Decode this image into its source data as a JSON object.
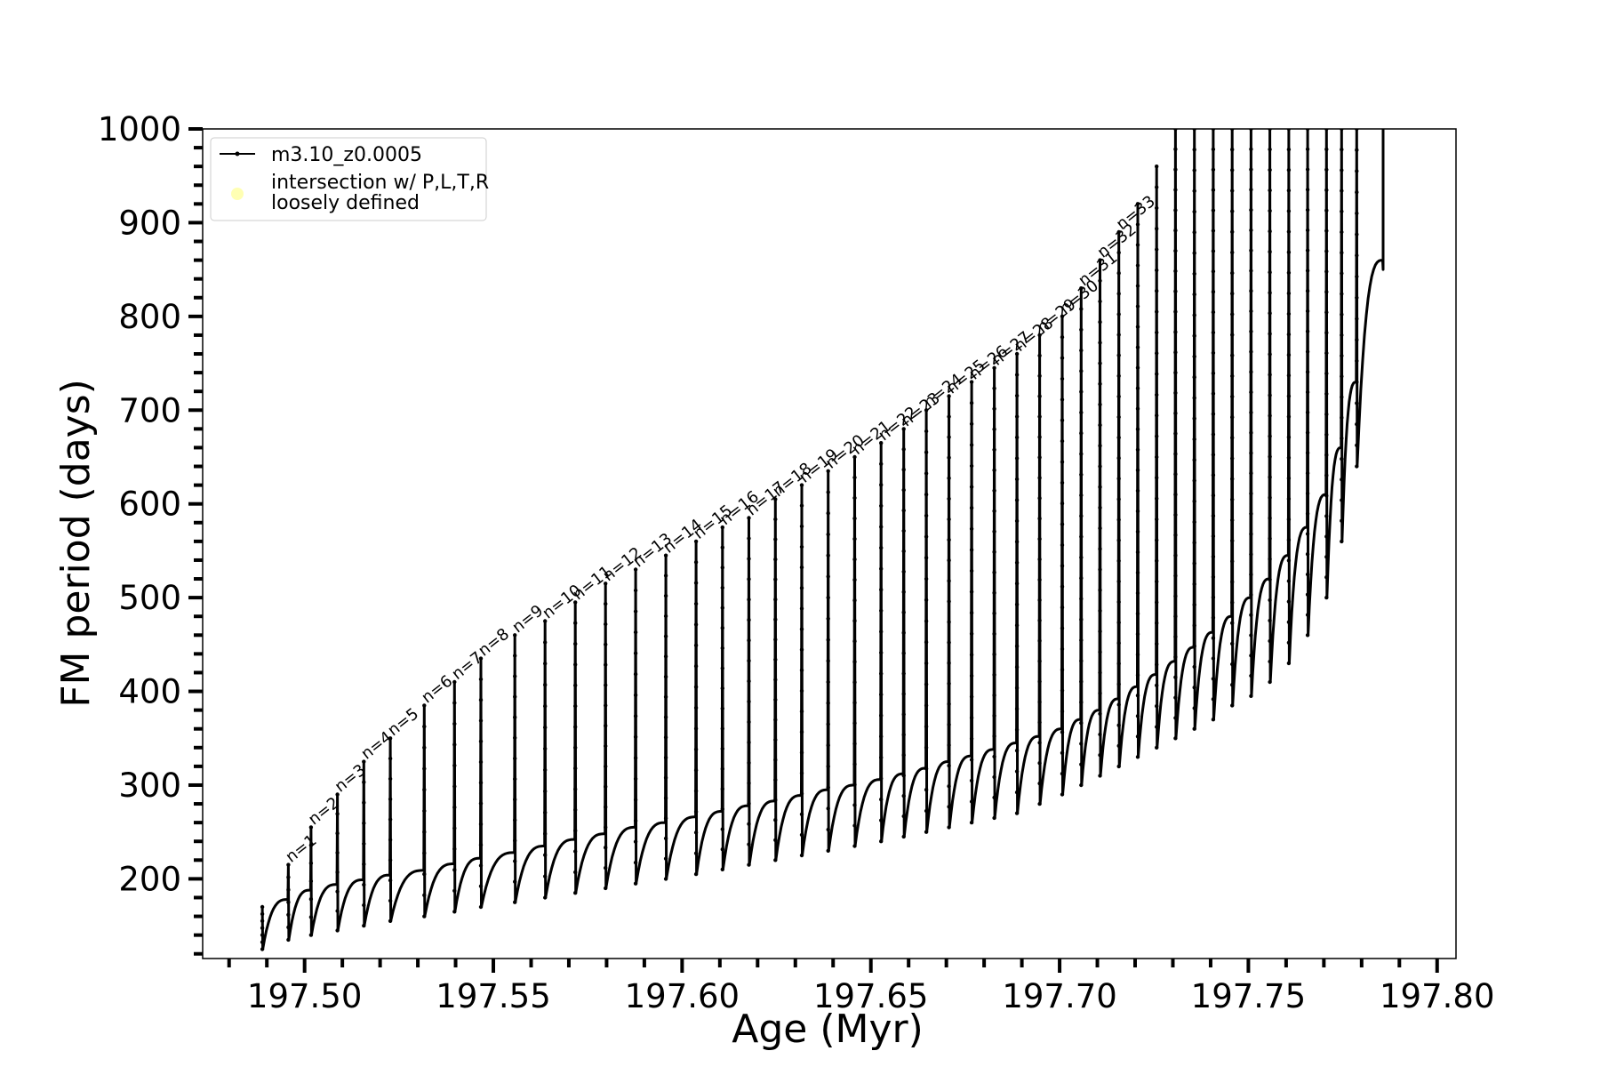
{
  "chart_data": {
    "type": "line",
    "title": "",
    "xlabel": "Age (Myr)",
    "ylabel": "FM period (days)",
    "xlim": [
      197.473,
      197.805
    ],
    "ylim": [
      115,
      1000
    ],
    "xticks": [
      197.5,
      197.55,
      197.6,
      197.65,
      197.7,
      197.75,
      197.8
    ],
    "xtick_labels": [
      "197.50",
      "197.55",
      "197.60",
      "197.65",
      "197.70",
      "197.75",
      "197.80"
    ],
    "x_minor_step": 0.01,
    "yticks": [
      200,
      300,
      400,
      500,
      600,
      700,
      800,
      900,
      1000
    ],
    "ytick_labels": [
      "200",
      "300",
      "400",
      "500",
      "600",
      "700",
      "800",
      "900",
      "1000"
    ],
    "y_minor_step": 20,
    "grid": false,
    "legend_position": "upper-left",
    "series": [
      {
        "name": "m3.10_z0.0005",
        "color": "#000000",
        "marker": "dot"
      }
    ],
    "intersection_legend": {
      "label_lines": [
        "intersection w/ P,L,T,R",
        "loosely defined"
      ],
      "color": "#ffffb3"
    },
    "pulses": [
      {
        "label": "",
        "x": 197.4888,
        "peak": 170,
        "min": 125,
        "end": 178
      },
      {
        "label": "n=1",
        "x": 197.4957,
        "peak": 215,
        "min": 135,
        "end": 188
      },
      {
        "label": "n=2",
        "x": 197.5017,
        "peak": 255,
        "min": 140,
        "end": 194
      },
      {
        "label": "n=3",
        "x": 197.5087,
        "peak": 290,
        "min": 145,
        "end": 199
      },
      {
        "label": "n=4",
        "x": 197.5157,
        "peak": 325,
        "min": 150,
        "end": 204
      },
      {
        "label": "n=5",
        "x": 197.5227,
        "peak": 350,
        "min": 155,
        "end": 209
      },
      {
        "label": "n=6",
        "x": 197.5317,
        "peak": 385,
        "min": 160,
        "end": 216
      },
      {
        "label": "n=7",
        "x": 197.5397,
        "peak": 410,
        "min": 165,
        "end": 222
      },
      {
        "label": "n=8",
        "x": 197.5467,
        "peak": 435,
        "min": 170,
        "end": 228
      },
      {
        "label": "n=9",
        "x": 197.5557,
        "peak": 460,
        "min": 175,
        "end": 235
      },
      {
        "label": "n=10",
        "x": 197.5637,
        "peak": 475,
        "min": 180,
        "end": 242
      },
      {
        "label": "n=11",
        "x": 197.5717,
        "peak": 495,
        "min": 185,
        "end": 248
      },
      {
        "label": "n=12",
        "x": 197.5797,
        "peak": 515,
        "min": 190,
        "end": 255
      },
      {
        "label": "n=13",
        "x": 197.5877,
        "peak": 530,
        "min": 195,
        "end": 260
      },
      {
        "label": "n=14",
        "x": 197.5957,
        "peak": 545,
        "min": 200,
        "end": 266
      },
      {
        "label": "n=15",
        "x": 197.6037,
        "peak": 560,
        "min": 205,
        "end": 272
      },
      {
        "label": "n=16",
        "x": 197.6107,
        "peak": 575,
        "min": 210,
        "end": 278
      },
      {
        "label": "n=17",
        "x": 197.6177,
        "peak": 585,
        "min": 215,
        "end": 283
      },
      {
        "label": "n=18",
        "x": 197.6247,
        "peak": 605,
        "min": 220,
        "end": 289
      },
      {
        "label": "n=19",
        "x": 197.6317,
        "peak": 620,
        "min": 225,
        "end": 295
      },
      {
        "label": "n=20",
        "x": 197.6387,
        "peak": 635,
        "min": 230,
        "end": 300
      },
      {
        "label": "n=21",
        "x": 197.6457,
        "peak": 650,
        "min": 235,
        "end": 306
      },
      {
        "label": "n=22",
        "x": 197.6527,
        "peak": 665,
        "min": 240,
        "end": 312
      },
      {
        "label": "n=23",
        "x": 197.6587,
        "peak": 680,
        "min": 245,
        "end": 318
      },
      {
        "label": "n=24",
        "x": 197.6647,
        "peak": 700,
        "min": 250,
        "end": 325
      },
      {
        "label": "n=25",
        "x": 197.6707,
        "peak": 715,
        "min": 255,
        "end": 331
      },
      {
        "label": "n=26",
        "x": 197.6767,
        "peak": 730,
        "min": 260,
        "end": 338
      },
      {
        "label": "n=27",
        "x": 197.6827,
        "peak": 745,
        "min": 265,
        "end": 345
      },
      {
        "label": "n=28",
        "x": 197.6887,
        "peak": 760,
        "min": 270,
        "end": 352
      },
      {
        "label": "n=29",
        "x": 197.6947,
        "peak": 780,
        "min": 280,
        "end": 360
      },
      {
        "label": "n=30",
        "x": 197.7007,
        "peak": 800,
        "min": 290,
        "end": 370
      },
      {
        "label": "n=31",
        "x": 197.7057,
        "peak": 830,
        "min": 300,
        "end": 380
      },
      {
        "label": "n=32",
        "x": 197.7107,
        "peak": 860,
        "min": 310,
        "end": 392
      },
      {
        "label": "n=33",
        "x": 197.7157,
        "peak": 890,
        "min": 320,
        "end": 405
      },
      {
        "label": "",
        "x": 197.7207,
        "peak": 920,
        "min": 330,
        "end": 418
      },
      {
        "label": "",
        "x": 197.7257,
        "peak": 960,
        "min": 340,
        "end": 432
      },
      {
        "label": "",
        "x": 197.7307,
        "peak": 1000,
        "min": 350,
        "end": 447
      },
      {
        "label": "",
        "x": 197.7357,
        "peak": 1000,
        "min": 360,
        "end": 463
      },
      {
        "label": "",
        "x": 197.7407,
        "peak": 1000,
        "min": 370,
        "end": 480
      },
      {
        "label": "",
        "x": 197.7457,
        "peak": 1000,
        "min": 385,
        "end": 500
      },
      {
        "label": "",
        "x": 197.7507,
        "peak": 1000,
        "min": 395,
        "end": 520
      },
      {
        "label": "",
        "x": 197.7557,
        "peak": 1000,
        "min": 410,
        "end": 545
      },
      {
        "label": "",
        "x": 197.7607,
        "peak": 1000,
        "min": 430,
        "end": 575
      },
      {
        "label": "",
        "x": 197.7657,
        "peak": 1000,
        "min": 460,
        "end": 610
      },
      {
        "label": "",
        "x": 197.7707,
        "peak": 1000,
        "min": 500,
        "end": 660
      },
      {
        "label": "",
        "x": 197.7747,
        "peak": 1000,
        "min": 560,
        "end": 730
      },
      {
        "label": "",
        "x": 197.7787,
        "peak": 1000,
        "min": 640,
        "end": 860
      }
    ],
    "tail": {
      "x": 197.7857,
      "min": 850,
      "peak": 1000
    }
  }
}
